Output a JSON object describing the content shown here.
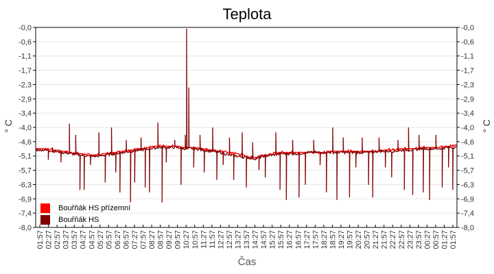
{
  "chart_data": {
    "type": "line",
    "title": "Teplota",
    "xlabel": "Čas",
    "ylabel": "° C",
    "ylabel_right": "° C",
    "ylim": [
      -8.0,
      0.0
    ],
    "yticks": [
      "-0,0",
      "-0,6",
      "-1,1",
      "-1,7",
      "-2,3",
      "-2,9",
      "-3,4",
      "-4,0",
      "-4,6",
      "-5,1",
      "-5,7",
      "-6,3",
      "-6,9",
      "-7,4",
      "-8,0"
    ],
    "xticks": [
      "01:57",
      "02:27",
      "02:57",
      "03:27",
      "03:57",
      "04:27",
      "04:57",
      "05:27",
      "05:57",
      "06:27",
      "06:57",
      "07:27",
      "07:57",
      "08:27",
      "08:57",
      "09:27",
      "09:57",
      "10:27",
      "10:57",
      "11:27",
      "11:57",
      "12:27",
      "12:57",
      "13:27",
      "13:57",
      "14:27",
      "14:57",
      "15:27",
      "15:57",
      "16:27",
      "16:57",
      "17:27",
      "17:57",
      "18:27",
      "18:57",
      "19:27",
      "19:57",
      "20:27",
      "20:57",
      "21:27",
      "21:57",
      "22:27",
      "22:57",
      "23:27",
      "23:57",
      "00:27",
      "00:57",
      "01:27",
      "01:57"
    ],
    "grid": true,
    "legend_position": "lower-left",
    "series": [
      {
        "name": "Bouřňák HS přízemní",
        "color": "#ff0000",
        "baseline": [
          -4.85,
          -4.85,
          -4.9,
          -4.95,
          -5.0,
          -5.05,
          -5.1,
          -5.1,
          -5.05,
          -5.0,
          -4.95,
          -4.9,
          -4.85,
          -4.8,
          -4.75,
          -4.75,
          -4.75,
          -4.8,
          -4.8,
          -4.85,
          -4.9,
          -4.95,
          -5.0,
          -5.05,
          -5.15,
          -5.2,
          -5.1,
          -5.05,
          -5.0,
          -5.0,
          -5.0,
          -5.0,
          -5.0,
          -5.0,
          -4.95,
          -4.95,
          -4.95,
          -4.95,
          -4.95,
          -4.95,
          -4.9,
          -4.9,
          -4.85,
          -4.85,
          -4.8,
          -4.8,
          -4.8,
          -4.75,
          -4.7
        ]
      },
      {
        "name": "Bouřňák HS",
        "color": "#800000",
        "baseline": [
          -4.9,
          -4.9,
          -4.95,
          -5.0,
          -5.05,
          -5.1,
          -5.15,
          -5.15,
          -5.1,
          -5.05,
          -5.0,
          -4.95,
          -4.9,
          -4.85,
          -4.8,
          -4.8,
          -4.8,
          -4.85,
          -4.85,
          -4.9,
          -4.95,
          -5.0,
          -5.1,
          -5.15,
          -5.2,
          -5.25,
          -5.15,
          -5.1,
          -5.05,
          -5.05,
          -5.05,
          -5.0,
          -5.0,
          -5.0,
          -5.0,
          -5.0,
          -5.0,
          -5.0,
          -5.0,
          -4.95,
          -4.95,
          -4.95,
          -4.9,
          -4.9,
          -4.85,
          -4.85,
          -4.85,
          -4.8,
          -4.8
        ],
        "spikes": [
          {
            "t": 0.06,
            "v": -5.4
          },
          {
            "t": 0.08,
            "v": -3.85
          },
          {
            "t": 0.095,
            "v": -4.3
          },
          {
            "t": 0.105,
            "v": -6.5
          },
          {
            "t": 0.115,
            "v": -6.5
          },
          {
            "t": 0.13,
            "v": -5.5
          },
          {
            "t": 0.15,
            "v": -4.2
          },
          {
            "t": 0.165,
            "v": -6.2
          },
          {
            "t": 0.18,
            "v": -4.0
          },
          {
            "t": 0.19,
            "v": -5.8
          },
          {
            "t": 0.2,
            "v": -6.6
          },
          {
            "t": 0.215,
            "v": -4.5
          },
          {
            "t": 0.225,
            "v": -7.0
          },
          {
            "t": 0.235,
            "v": -6.2
          },
          {
            "t": 0.25,
            "v": -4.4
          },
          {
            "t": 0.26,
            "v": -6.4
          },
          {
            "t": 0.27,
            "v": -6.6
          },
          {
            "t": 0.29,
            "v": -3.8
          },
          {
            "t": 0.3,
            "v": -7.0
          },
          {
            "t": 0.31,
            "v": -5.4
          },
          {
            "t": 0.33,
            "v": -4.5
          },
          {
            "t": 0.345,
            "v": -6.3
          },
          {
            "t": 0.355,
            "v": -4.3
          },
          {
            "t": 0.358,
            "v": -0.05
          },
          {
            "t": 0.362,
            "v": -2.4
          },
          {
            "t": 0.375,
            "v": -5.6
          },
          {
            "t": 0.39,
            "v": -4.3
          },
          {
            "t": 0.4,
            "v": -5.8
          },
          {
            "t": 0.42,
            "v": -4.0
          },
          {
            "t": 0.43,
            "v": -6.1
          },
          {
            "t": 0.445,
            "v": -5.5
          },
          {
            "t": 0.46,
            "v": -4.4
          },
          {
            "t": 0.47,
            "v": -6.1
          },
          {
            "t": 0.49,
            "v": -4.2
          },
          {
            "t": 0.5,
            "v": -6.4
          },
          {
            "t": 0.515,
            "v": -4.6
          },
          {
            "t": 0.53,
            "v": -5.7
          },
          {
            "t": 0.545,
            "v": -6.0
          },
          {
            "t": 0.57,
            "v": -4.2
          },
          {
            "t": 0.58,
            "v": -6.5
          },
          {
            "t": 0.595,
            "v": -6.9
          },
          {
            "t": 0.61,
            "v": -4.5
          },
          {
            "t": 0.625,
            "v": -6.8
          },
          {
            "t": 0.64,
            "v": -6.3
          },
          {
            "t": 0.66,
            "v": -4.5
          },
          {
            "t": 0.675,
            "v": -5.5
          },
          {
            "t": 0.69,
            "v": -6.6
          },
          {
            "t": 0.705,
            "v": -4.0
          },
          {
            "t": 0.715,
            "v": -6.9
          },
          {
            "t": 0.73,
            "v": -4.4
          },
          {
            "t": 0.745,
            "v": -6.8
          },
          {
            "t": 0.76,
            "v": -5.6
          },
          {
            "t": 0.775,
            "v": -4.4
          },
          {
            "t": 0.79,
            "v": -6.3
          },
          {
            "t": 0.8,
            "v": -6.8
          },
          {
            "t": 0.815,
            "v": -4.4
          },
          {
            "t": 0.83,
            "v": -5.6
          },
          {
            "t": 0.845,
            "v": -6.0
          },
          {
            "t": 0.86,
            "v": -4.5
          },
          {
            "t": 0.875,
            "v": -6.5
          },
          {
            "t": 0.885,
            "v": -4.0
          },
          {
            "t": 0.895,
            "v": -6.7
          },
          {
            "t": 0.91,
            "v": -4.3
          },
          {
            "t": 0.92,
            "v": -6.6
          },
          {
            "t": 0.935,
            "v": -6.9
          },
          {
            "t": 0.95,
            "v": -4.3
          },
          {
            "t": 0.965,
            "v": -6.4
          },
          {
            "t": 0.98,
            "v": -5.6
          },
          {
            "t": 0.99,
            "v": -6.5
          },
          {
            "t": 0.03,
            "v": -5.3
          },
          {
            "t": 0.04,
            "v": -4.8
          }
        ]
      }
    ]
  }
}
